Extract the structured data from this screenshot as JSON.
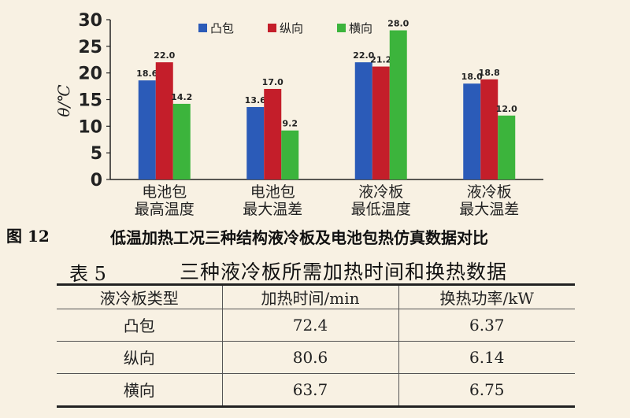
{
  "chart_data": {
    "type": "bar",
    "ylabel": "θ/℃",
    "ylim": [
      0,
      30
    ],
    "yticks": [
      0,
      5,
      10,
      15,
      20,
      25,
      30
    ],
    "categories": [
      [
        "电池包",
        "最高温度"
      ],
      [
        "电池包",
        "最大温差"
      ],
      [
        "液冷板",
        "最低温度"
      ],
      [
        "液冷板",
        "最大温差"
      ]
    ],
    "legend_position": "top",
    "series": [
      {
        "name": "凸包",
        "color": "#2b5bb8",
        "values": [
          18.6,
          13.6,
          22.0,
          18.0
        ]
      },
      {
        "name": "纵向",
        "color": "#c41e2a",
        "values": [
          22.0,
          17.0,
          21.2,
          18.8
        ]
      },
      {
        "name": "横向",
        "color": "#3cb43c",
        "values": [
          14.2,
          9.2,
          28.0,
          12.0
        ]
      }
    ]
  },
  "figure": {
    "label": "图 12",
    "title": "低温加热工况三种结构液冷板及电池包热仿真数据对比"
  },
  "table": {
    "label": "表 5",
    "title": "三种液冷板所需加热时间和换热数据",
    "headers": [
      "液冷板类型",
      "加热时间/min",
      "换热功率/kW"
    ],
    "rows": [
      [
        "凸包",
        "72.4",
        "6.37"
      ],
      [
        "纵向",
        "80.6",
        "6.14"
      ],
      [
        "横向",
        "63.7",
        "6.75"
      ]
    ]
  }
}
